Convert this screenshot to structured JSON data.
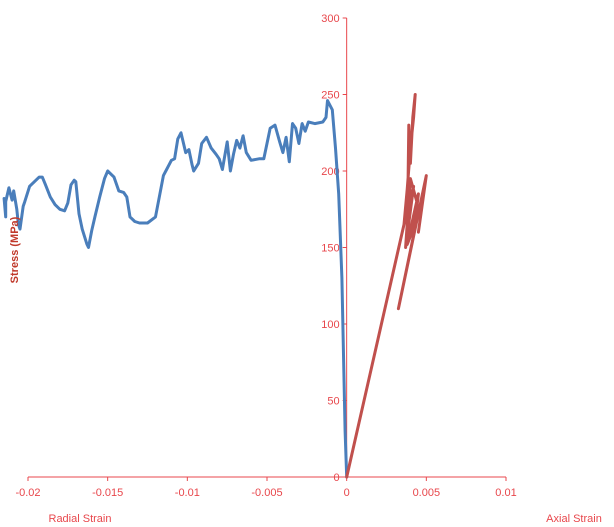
{
  "chart_data": {
    "type": "line",
    "xlim": [
      -0.02,
      0.01
    ],
    "ylim": [
      0,
      300
    ],
    "x_ticks": [
      "-0.02",
      "-0.015",
      "-0.01",
      "-0.005",
      "0",
      "0.005",
      "0.01"
    ],
    "y_ticks": [
      "0",
      "50",
      "100",
      "150",
      "200",
      "250",
      "300"
    ],
    "ylabel": "Stress (MPa)",
    "x_titles": {
      "left": "Radial Strain",
      "right": "Axial Strain"
    },
    "grid": false,
    "axis_color": "#e8474c",
    "series": [
      {
        "color": "#4a7ebb",
        "points": [
          [
            0,
            0
          ],
          [
            -0.0001,
            30
          ],
          [
            -0.0002,
            80
          ],
          [
            -0.0003,
            130
          ],
          [
            -0.0005,
            185
          ],
          [
            -0.0007,
            215
          ],
          [
            -0.0009,
            240
          ],
          [
            -0.0012,
            246
          ],
          [
            -0.0013,
            235
          ],
          [
            -0.0015,
            232
          ],
          [
            -0.002,
            231
          ],
          [
            -0.0024,
            232
          ],
          [
            -0.0026,
            226
          ],
          [
            -0.0028,
            231
          ],
          [
            -0.003,
            218
          ],
          [
            -0.0032,
            228
          ],
          [
            -0.0034,
            231
          ],
          [
            -0.0036,
            206
          ],
          [
            -0.0038,
            222
          ],
          [
            -0.004,
            212
          ],
          [
            -0.0042,
            219
          ],
          [
            -0.0045,
            230
          ],
          [
            -0.0048,
            228
          ],
          [
            -0.0052,
            208
          ],
          [
            -0.0055,
            208
          ],
          [
            -0.006,
            207
          ],
          [
            -0.0063,
            212
          ],
          [
            -0.0065,
            223
          ],
          [
            -0.0067,
            215
          ],
          [
            -0.0069,
            220
          ],
          [
            -0.0071,
            211
          ],
          [
            -0.0073,
            200
          ],
          [
            -0.0075,
            219
          ],
          [
            -0.0077,
            207
          ],
          [
            -0.0078,
            201
          ],
          [
            -0.008,
            208
          ],
          [
            -0.0082,
            211
          ],
          [
            -0.0085,
            215
          ],
          [
            -0.0088,
            222
          ],
          [
            -0.0091,
            218
          ],
          [
            -0.0093,
            205
          ],
          [
            -0.0096,
            200
          ],
          [
            -0.0097,
            204
          ],
          [
            -0.0099,
            214
          ],
          [
            -0.0101,
            212
          ],
          [
            -0.0104,
            225
          ],
          [
            -0.0106,
            221
          ],
          [
            -0.0108,
            208
          ],
          [
            -0.011,
            207
          ],
          [
            -0.0112,
            203
          ],
          [
            -0.0113,
            201
          ],
          [
            -0.0115,
            197
          ],
          [
            -0.012,
            170
          ],
          [
            -0.0125,
            166
          ],
          [
            -0.013,
            166
          ],
          [
            -0.0133,
            167
          ],
          [
            -0.0136,
            170
          ],
          [
            -0.0138,
            183
          ],
          [
            -0.014,
            186
          ],
          [
            -0.0143,
            187
          ],
          [
            -0.0146,
            196
          ],
          [
            -0.015,
            200
          ],
          [
            -0.0152,
            195
          ],
          [
            -0.0155,
            183
          ],
          [
            -0.0158,
            170
          ],
          [
            -0.016,
            161
          ],
          [
            -0.0162,
            150
          ],
          [
            -0.0163,
            152
          ],
          [
            -0.0166,
            162
          ],
          [
            -0.0168,
            172
          ],
          [
            -0.017,
            193
          ],
          [
            -0.0171,
            194
          ],
          [
            -0.0173,
            191
          ],
          [
            -0.0175,
            179
          ],
          [
            -0.0177,
            174
          ],
          [
            -0.018,
            175
          ],
          [
            -0.0183,
            178
          ],
          [
            -0.0186,
            183
          ],
          [
            -0.0189,
            191
          ],
          [
            -0.0191,
            196
          ],
          [
            -0.0193,
            196
          ],
          [
            -0.0196,
            193
          ],
          [
            -0.0199,
            190
          ],
          [
            -0.0202,
            180
          ],
          [
            -0.0203,
            177
          ],
          [
            -0.0205,
            162
          ],
          [
            -0.0206,
            165
          ],
          [
            -0.0207,
            175
          ],
          [
            -0.0209,
            187
          ],
          [
            -0.021,
            181
          ],
          [
            -0.0212,
            189
          ],
          [
            -0.0214,
            180
          ],
          [
            -0.0214,
            175
          ],
          [
            -0.0214,
            170
          ],
          [
            -0.0215,
            182
          ]
        ]
      },
      {
        "color": "#c0504d",
        "points": [
          [
            0,
            0
          ],
          [
            0.0036,
            165
          ],
          [
            0.0038,
            188
          ],
          [
            0.004,
            215
          ],
          [
            0.0041,
            225
          ],
          [
            0.0042,
            235
          ],
          [
            0.0043,
            250
          ],
          [
            0.00415,
            235
          ],
          [
            0.004,
            205
          ],
          [
            0.0039,
            230
          ],
          [
            0.00385,
            190
          ],
          [
            0.0037,
            175
          ],
          [
            0.0036,
            165
          ],
          [
            0.0042,
            190
          ],
          [
            0.0037,
            150
          ],
          [
            0.004,
            195
          ],
          [
            0.0044,
            180
          ],
          [
            0.0041,
            160
          ],
          [
            0.0038,
            152
          ],
          [
            0.0045,
            185
          ],
          [
            0.0042,
            158
          ],
          [
            0.00325,
            110
          ],
          [
            0.005,
            197
          ],
          [
            0.0045,
            160
          ]
        ]
      }
    ]
  }
}
